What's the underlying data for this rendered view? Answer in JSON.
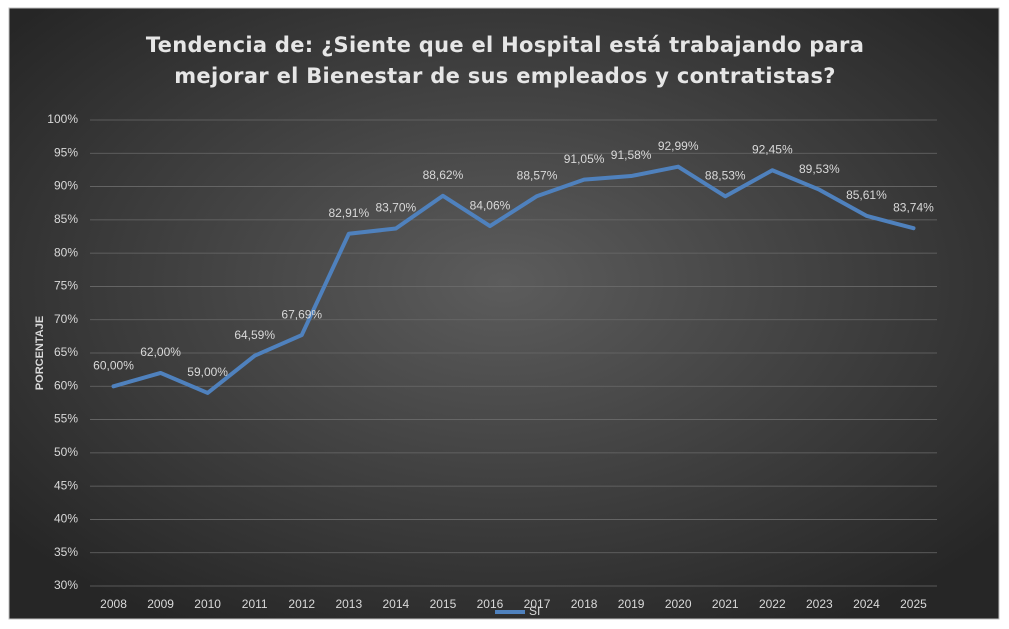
{
  "chart_data": {
    "type": "line",
    "title": "Tendencia de: ¿Siente que el Hospital está trabajando para mejorar el Bienestar de sus empleados y contratistas?",
    "y_label": "PORCENTAJE",
    "categories": [
      "2008",
      "2009",
      "2010",
      "2011",
      "2012",
      "2013",
      "2014",
      "2015",
      "2016",
      "2017",
      "2018",
      "2019",
      "2020",
      "2021",
      "2022",
      "2023",
      "2024",
      "2025"
    ],
    "series": [
      {
        "name": "SI",
        "color": "#4f81bd",
        "values": [
          60,
          62,
          59,
          64.59,
          67.69,
          82.91,
          83.7,
          88.62,
          84.06,
          88.57,
          91.05,
          91.58,
          92.99,
          88.53,
          92.45,
          89.53,
          85.61,
          83.74
        ],
        "value_labels": [
          "60,00%",
          "62,00%",
          "59,00%",
          "64,59%",
          "67,69%",
          "82,91%",
          "83,70%",
          "88,62%",
          "84,06%",
          "88,57%",
          "91,05%",
          "91,58%",
          "92,99%",
          "88,53%",
          "92,45%",
          "89,53%",
          "85,61%",
          "83,74%"
        ]
      }
    ],
    "ylim": [
      30,
      100
    ],
    "yticks": [
      {
        "value": 30,
        "label": "30%"
      },
      {
        "value": 35,
        "label": "35%"
      },
      {
        "value": 40,
        "label": "40%"
      },
      {
        "value": 45,
        "label": "45%"
      },
      {
        "value": 50,
        "label": "50%"
      },
      {
        "value": 55,
        "label": "55%"
      },
      {
        "value": 60,
        "label": "60%"
      },
      {
        "value": 65,
        "label": "65%"
      },
      {
        "value": 70,
        "label": "70%"
      },
      {
        "value": 75,
        "label": "75%"
      },
      {
        "value": 80,
        "label": "80%"
      },
      {
        "value": 85,
        "label": "85%"
      },
      {
        "value": 90,
        "label": "90%"
      },
      {
        "value": 95,
        "label": "95%"
      },
      {
        "value": 100,
        "label": "100%"
      }
    ],
    "grid": true,
    "legend": "bottom"
  }
}
